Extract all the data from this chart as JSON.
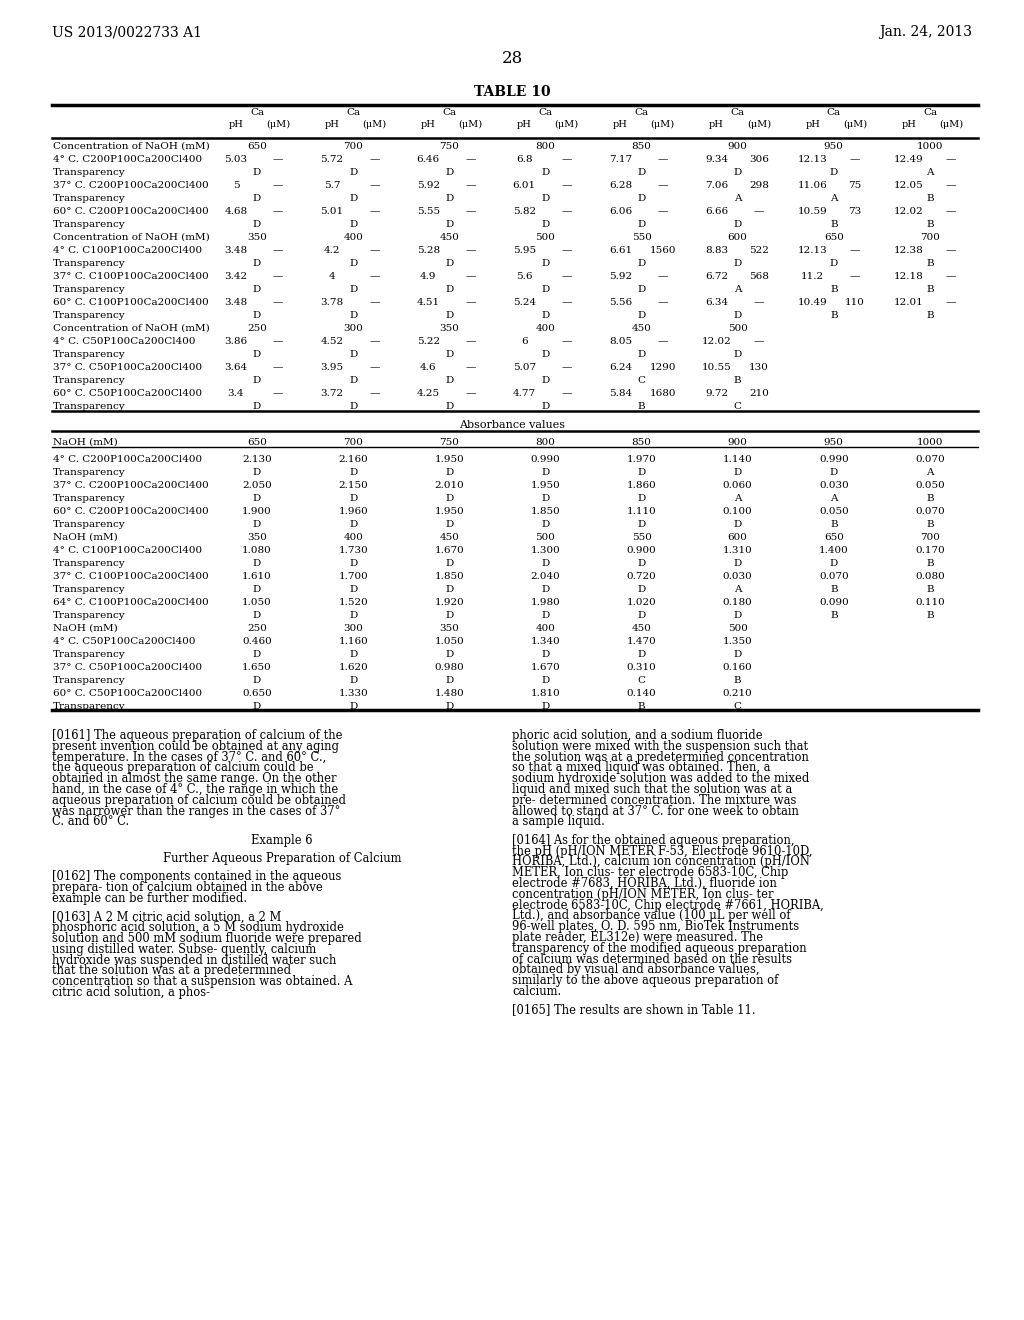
{
  "header_left": "US 2013/0022733 A1",
  "header_right": "Jan. 24, 2013",
  "page_number": "28",
  "table_title": "TABLE 10",
  "background_color": "#ffffff",
  "text_color": "#000000",
  "paragraphs": [
    "[0161]   The aqueous preparation of calcium of the present invention could be obtained at any aging temperature. In the cases of 37° C. and 60° C., the aqueous preparation of calcium could be obtained in almost the same range. On the other hand, in the case of 4° C., the range in which the aqueous preparation of calcium could be obtained was narrower than the ranges in the cases of 37° C. and 60° C.",
    "phoric acid solution, and a sodium fluoride solution were mixed with the suspension such that the solution was at a predetermined concentration so that a mixed liquid was obtained. Then, a sodium hydroxide solution was added to the mixed liquid and mixed such that the solution was at a pre- determined concentration. The mixture was allowed to stand at 37° C. for one week to obtain a sample liquid.",
    "[0162]   The components contained in the aqueous prepara- tion of calcium obtained in the above example can be further modified.",
    "[0164]   As for the obtained aqueous preparation, the pH (pH/ION METER F-53, Electrode 9610-10D, HORIBA, Ltd.), calcium ion concentration (pH/ION METER, Ion clus- ter electrode 6583-10C, Chip electrode #7683, HORIBA, Ltd.), fluoride ion concentration (pH/ION METER, Ion clus- ter electrode 6583-10C, Chip electrode #7661, HORIBA, Ltd.), and absorbance value (100 μL per well of 96-well plates, O. D. 595 nm, BioTek Instruments plate reader, EL312e) were measured. The transparency of the modified aqueous preparation of calcium was determined based on the results obtained by visual and absorbance values, similarly to the above aqueous preparation of calcium.",
    "[0163]   A 2 M citric acid solution, a 2 M phosphoric acid solution, a 5 M sodium hydroxide solution and 500 mM sodium fluoride were prepared using distilled water. Subse- quently, calcium hydroxide was suspended in distilled water such that the solution was at a predetermined concentration so that a suspension was obtained. A citric acid solution, a phos-",
    "[0165]   The results are shown in Table 11."
  ]
}
